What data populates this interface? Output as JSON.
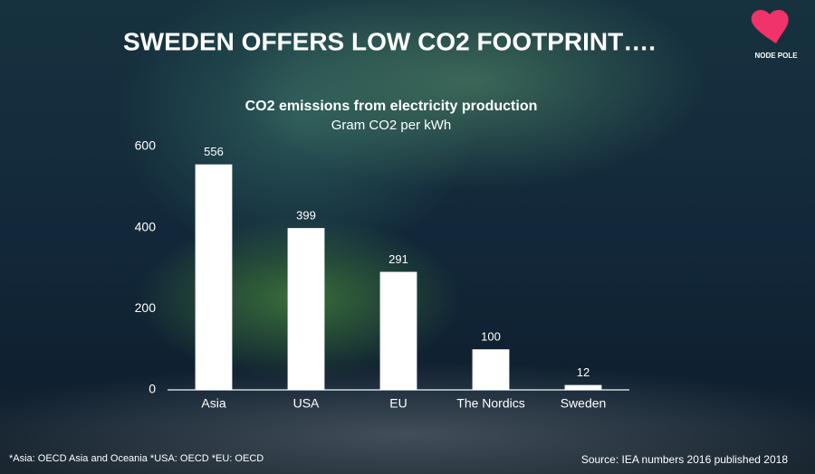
{
  "slide": {
    "heading": "SWEDEN OFFERS LOW CO2 FOOTPRINT….",
    "logo": "NODE POLE",
    "footnote": "*Asia: OECD Asia and Oceania *USA: OECD *EU: OECD",
    "source": "Source: IEA numbers 2016 published 2018"
  },
  "chart_data": {
    "type": "bar",
    "title": "CO2 emissions from electricity production",
    "subtitle": "Gram CO2 per kWh",
    "categories": [
      "Asia",
      "USA",
      "EU",
      "The Nordics",
      "Sweden"
    ],
    "values": [
      556,
      399,
      291,
      100,
      12
    ],
    "color": "#ffffff",
    "ylim": [
      0,
      600
    ],
    "yticks": [
      0,
      200,
      400,
      600
    ],
    "grid": false
  }
}
